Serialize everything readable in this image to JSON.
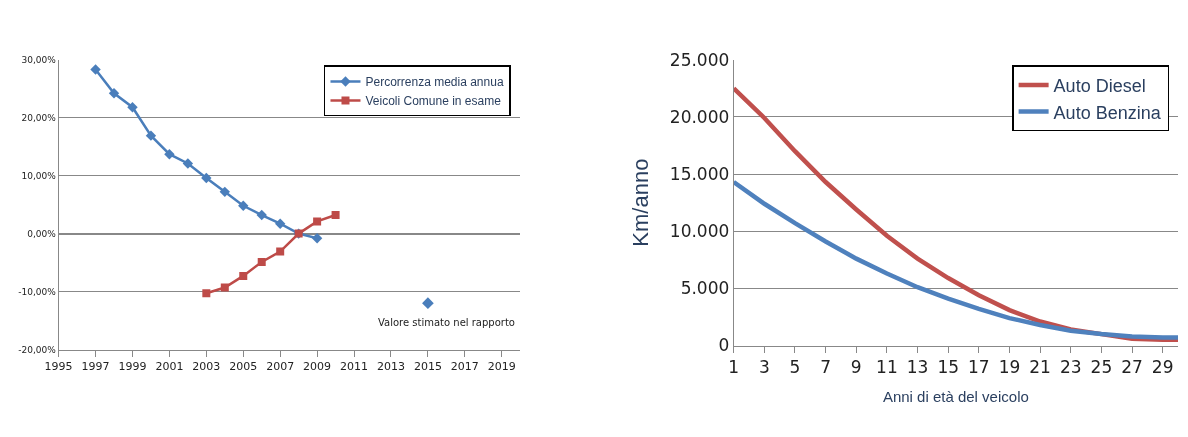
{
  "chart_data": [
    {
      "type": "line",
      "x": [
        1997,
        1998,
        1999,
        2000,
        2001,
        2002,
        2003,
        2004,
        2005,
        2006,
        2007,
        2008,
        2009,
        2010
      ],
      "series": [
        {
          "name": "Percorrenza media annua",
          "color": "#4a7ebb",
          "marker": "diamond",
          "values": [
            28.3,
            24.2,
            21.8,
            16.9,
            13.7,
            12.1,
            9.6,
            7.2,
            4.8,
            3.2,
            1.7,
            0,
            -0.8,
            null
          ]
        },
        {
          "name": "Veicoli Comune in esame",
          "color": "#be4b48",
          "marker": "square",
          "values": [
            null,
            null,
            null,
            null,
            null,
            null,
            -10.3,
            -9.3,
            -7.3,
            -4.9,
            -3.1,
            0,
            2.1,
            3.2
          ]
        },
        {
          "type": "scatter",
          "color": "#4a7ebb",
          "marker": "diamond",
          "x": [
            2015
          ],
          "values": [
            -12
          ]
        }
      ],
      "xlim": [
        1995,
        2020
      ],
      "xticks": [
        1995,
        1997,
        1999,
        2001,
        2003,
        2005,
        2007,
        2009,
        2011,
        2013,
        2015,
        2017,
        2019
      ],
      "ylim": [
        -20,
        30
      ],
      "yticks": [
        {
          "value": -20,
          "label": "-20,00%"
        },
        {
          "value": -10,
          "label": "-10,00%"
        },
        {
          "value": 0,
          "label": "0,00%"
        },
        {
          "value": 10,
          "label": "10,00%"
        },
        {
          "value": 20,
          "label": "20,00%"
        },
        {
          "value": 30,
          "label": "30,00%"
        }
      ],
      "grid": "y",
      "legend": "top right",
      "annotations": [
        "Valore stimato nel rapporto"
      ]
    },
    {
      "type": "line",
      "x": [
        1,
        3,
        5,
        7,
        9,
        11,
        13,
        15,
        17,
        19,
        21,
        23,
        25,
        27,
        29,
        30
      ],
      "series": [
        {
          "name": "Auto Diesel",
          "color": "#c0504d",
          "values": [
            22500,
            19900,
            17000,
            14300,
            11900,
            9600,
            7600,
            5900,
            4400,
            3100,
            2100,
            1400,
            1000,
            600,
            500,
            500
          ]
        },
        {
          "name": "Auto Benzina",
          "color": "#4f81bd",
          "values": [
            14300,
            12400,
            10700,
            9100,
            7600,
            6300,
            5100,
            4100,
            3200,
            2400,
            1800,
            1300,
            1000,
            800,
            700,
            700
          ]
        }
      ],
      "xlim": [
        1,
        30
      ],
      "xticks": [
        1,
        3,
        5,
        7,
        9,
        11,
        13,
        15,
        17,
        19,
        21,
        23,
        25,
        27,
        29
      ],
      "ylim": [
        0,
        25000
      ],
      "yticks": [
        {
          "value": 0,
          "label": "0"
        },
        {
          "value": 5000,
          "label": "5.000"
        },
        {
          "value": 10000,
          "label": "10.000"
        },
        {
          "value": 15000,
          "label": "15.000"
        },
        {
          "value": 20000,
          "label": "20.000"
        },
        {
          "value": 25000,
          "label": "25.000"
        }
      ],
      "grid": "y",
      "legend": "top right",
      "marker": "none",
      "ylabel": "Km/anno",
      "xlabel": "Anni di età del veicolo"
    }
  ]
}
